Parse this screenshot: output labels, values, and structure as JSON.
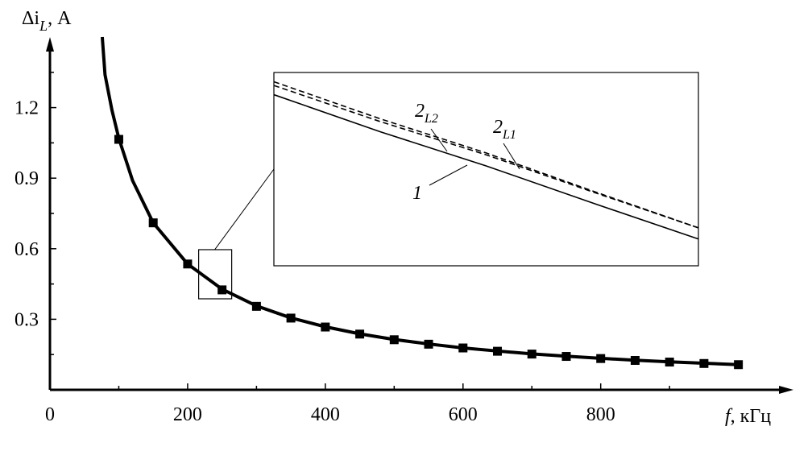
{
  "chart_data": {
    "type": "line",
    "x_label": {
      "main": "f",
      "unit": ", кГц"
    },
    "y_label": {
      "main": "Δi",
      "sub": "L",
      "unit": ", А"
    },
    "xlim": [
      0,
      1080
    ],
    "ylim": [
      0,
      1.5
    ],
    "xticks": [
      0,
      200,
      400,
      600,
      800
    ],
    "yticks": [
      0.3,
      0.6,
      0.9,
      1.2
    ],
    "yminor": [
      0.15,
      0.45,
      0.75,
      1.05,
      1.35
    ],
    "xminor": [
      100,
      300,
      500,
      700,
      900
    ],
    "curve": {
      "color": "#000000",
      "x": [
        76,
        80,
        90,
        100,
        120,
        150,
        200,
        250,
        300,
        350,
        400,
        450,
        500,
        550,
        600,
        650,
        700,
        750,
        800,
        850,
        900,
        950,
        1000
      ],
      "values": [
        1.5,
        1.34,
        1.19,
        1.07,
        0.89,
        0.71,
        0.535,
        0.428,
        0.357,
        0.306,
        0.268,
        0.238,
        0.214,
        0.195,
        0.178,
        0.165,
        0.153,
        0.143,
        0.134,
        0.126,
        0.119,
        0.113,
        0.107
      ]
    },
    "markers": {
      "color": "#000000",
      "x": [
        100,
        150,
        200,
        250,
        300,
        350,
        400,
        450,
        500,
        550,
        600,
        650,
        700,
        750,
        800,
        850,
        900,
        950,
        1000
      ],
      "values": [
        1.065,
        0.71,
        0.535,
        0.425,
        0.355,
        0.305,
        0.267,
        0.237,
        0.213,
        0.194,
        0.178,
        0.164,
        0.152,
        0.142,
        0.133,
        0.125,
        0.118,
        0.112,
        0.107
      ]
    },
    "inset": {
      "xlim": [
        216,
        264
      ],
      "ylim": [
        0.387,
        0.596
      ],
      "x": [
        216,
        228,
        240,
        252,
        264
      ],
      "series": [
        {
          "name": "1",
          "dash": false,
          "values": [
            0.572,
            0.532,
            0.495,
            0.455,
            0.416
          ]
        },
        {
          "name": "2",
          "sub": "L2",
          "dash": true,
          "values": [
            0.586,
            0.546,
            0.509,
            0.468,
            0.428
          ]
        },
        {
          "name": "2",
          "sub": "L1",
          "dash": true,
          "values": [
            0.582,
            0.543,
            0.507,
            0.467,
            0.428
          ]
        }
      ]
    }
  }
}
